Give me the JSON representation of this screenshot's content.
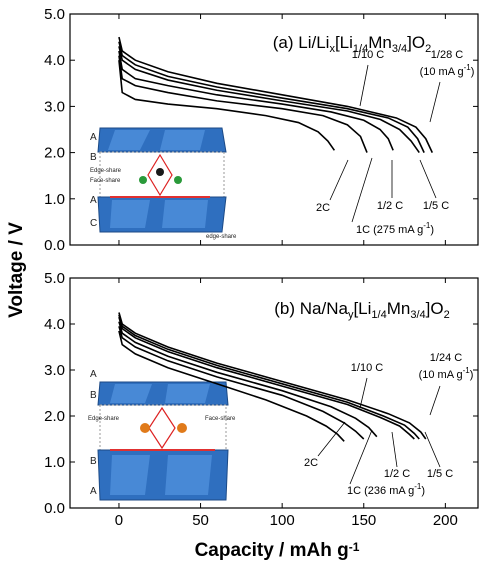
{
  "axis_labels": {
    "ylabel": "Voltage / V",
    "xlabel_parts": [
      {
        "text": "Capacity / mAh g"
      },
      {
        "text": "-1",
        "sup": true
      }
    ]
  },
  "chart_data": [
    {
      "type": "line",
      "title_parts": [
        {
          "text": "(a) Li/Li"
        },
        {
          "text": "x",
          "sub": true
        },
        {
          "text": "[Li"
        },
        {
          "text": "1/4",
          "sub": true
        },
        {
          "text": "Mn"
        },
        {
          "text": "3/4",
          "sub": true
        },
        {
          "text": "]O"
        },
        {
          "text": "2",
          "sub": true
        }
      ],
      "xlim": [
        -30,
        220
      ],
      "xticks": [
        0,
        50,
        100,
        150,
        200
      ],
      "xtick_labels": false,
      "ylim": [
        0,
        5
      ],
      "yticks": [
        {
          "value": 0,
          "label": "0.0"
        },
        {
          "value": 1,
          "label": "1.0"
        },
        {
          "value": 2,
          "label": "2.0"
        },
        {
          "value": 3,
          "label": "3.0"
        },
        {
          "value": 4,
          "label": "4.0"
        },
        {
          "value": 5,
          "label": "5.0"
        }
      ],
      "series": [
        {
          "color": "#000000",
          "x": [
            0,
            2,
            10,
            30,
            60,
            100,
            140,
            170,
            182,
            188,
            192
          ],
          "values": [
            4.5,
            4.2,
            4.0,
            3.75,
            3.5,
            3.25,
            3.0,
            2.75,
            2.55,
            2.3,
            2.0
          ]
        },
        {
          "color": "#000000",
          "x": [
            0,
            2,
            10,
            30,
            60,
            100,
            140,
            165,
            177,
            183,
            187
          ],
          "values": [
            4.4,
            4.1,
            3.9,
            3.65,
            3.42,
            3.18,
            2.95,
            2.75,
            2.55,
            2.3,
            2.0
          ]
        },
        {
          "color": "#000000",
          "x": [
            0,
            2,
            10,
            30,
            60,
            100,
            140,
            160,
            172,
            179,
            184
          ],
          "values": [
            4.3,
            4.0,
            3.8,
            3.57,
            3.35,
            3.12,
            2.9,
            2.72,
            2.5,
            2.25,
            2.0
          ]
        },
        {
          "color": "#000000",
          "x": [
            0,
            2,
            10,
            30,
            60,
            100,
            130,
            150,
            160,
            165,
            168
          ],
          "values": [
            4.2,
            3.8,
            3.6,
            3.45,
            3.25,
            3.05,
            2.88,
            2.7,
            2.5,
            2.3,
            2.05
          ]
        },
        {
          "color": "#000000",
          "x": [
            0,
            2,
            10,
            30,
            60,
            100,
            125,
            140,
            148,
            152
          ],
          "values": [
            4.1,
            3.6,
            3.45,
            3.3,
            3.12,
            2.95,
            2.8,
            2.6,
            2.35,
            2.0
          ]
        },
        {
          "color": "#000000",
          "x": [
            0,
            2,
            10,
            30,
            60,
            90,
            110,
            122,
            128,
            132
          ],
          "values": [
            4.0,
            3.3,
            3.15,
            3.05,
            2.95,
            2.8,
            2.65,
            2.45,
            2.25,
            2.05
          ]
        }
      ],
      "annotations": [
        {
          "parts": [
            {
              "text": "1/10 C"
            }
          ]
        },
        {
          "parts": [
            {
              "text": "1/28 C"
            }
          ]
        },
        {
          "parts": [
            {
              "text": "(10 mA g"
            },
            {
              "text": "-1",
              "sup": true
            },
            {
              "text": ")"
            }
          ]
        },
        {
          "parts": [
            {
              "text": "2C"
            }
          ]
        },
        {
          "parts": [
            {
              "text": "1C (275 mA g"
            },
            {
              "text": "-1",
              "sup": true
            },
            {
              "text": ")"
            }
          ]
        },
        {
          "parts": [
            {
              "text": "1/2 C"
            }
          ]
        },
        {
          "parts": [
            {
              "text": "1/5 C"
            }
          ]
        }
      ],
      "inset_labels": [
        "A",
        "B",
        "Edge-share",
        "Face-share",
        "A",
        "C",
        "edge-share"
      ]
    },
    {
      "type": "line",
      "title_parts": [
        {
          "text": "(b) Na/Na"
        },
        {
          "text": "y",
          "sub": true
        },
        {
          "text": "[Li"
        },
        {
          "text": "1/4",
          "sub": true
        },
        {
          "text": "Mn"
        },
        {
          "text": "3/4",
          "sub": true
        },
        {
          "text": "]O"
        },
        {
          "text": "2",
          "sub": true
        }
      ],
      "xlim": [
        -30,
        220
      ],
      "xticks": [
        0,
        50,
        100,
        150,
        200
      ],
      "xtick_labels": true,
      "ylim": [
        0,
        5
      ],
      "yticks": [
        {
          "value": 0,
          "label": "0.0"
        },
        {
          "value": 1,
          "label": "1.0"
        },
        {
          "value": 2,
          "label": "2.0"
        },
        {
          "value": 3,
          "label": "3.0"
        },
        {
          "value": 4,
          "label": "4.0"
        },
        {
          "value": 5,
          "label": "5.0"
        }
      ],
      "series": [
        {
          "color": "#000000",
          "x": [
            0,
            2,
            10,
            30,
            60,
            100,
            140,
            165,
            178,
            185,
            188
          ],
          "values": [
            4.25,
            4.0,
            3.8,
            3.5,
            3.15,
            2.75,
            2.35,
            2.05,
            1.85,
            1.65,
            1.5
          ]
        },
        {
          "color": "#000000",
          "x": [
            0,
            2,
            10,
            30,
            60,
            100,
            140,
            162,
            175,
            181,
            184
          ],
          "values": [
            4.2,
            3.95,
            3.75,
            3.45,
            3.1,
            2.7,
            2.3,
            2.0,
            1.8,
            1.62,
            1.5
          ]
        },
        {
          "color": "#000000",
          "x": [
            0,
            2,
            10,
            30,
            60,
            100,
            140,
            160,
            172,
            178,
            181
          ],
          "values": [
            4.15,
            3.9,
            3.7,
            3.4,
            3.05,
            2.65,
            2.25,
            1.97,
            1.78,
            1.6,
            1.5
          ]
        },
        {
          "color": "#000000",
          "x": [
            0,
            2,
            10,
            30,
            60,
            100,
            130,
            145,
            153,
            158
          ],
          "values": [
            4.05,
            3.8,
            3.6,
            3.3,
            2.95,
            2.55,
            2.2,
            1.95,
            1.75,
            1.55
          ]
        },
        {
          "color": "#000000",
          "x": [
            0,
            2,
            10,
            30,
            60,
            100,
            125,
            138,
            145,
            150
          ],
          "values": [
            3.95,
            3.7,
            3.5,
            3.2,
            2.85,
            2.45,
            2.1,
            1.85,
            1.67,
            1.5
          ]
        },
        {
          "color": "#000000",
          "x": [
            0,
            2,
            10,
            30,
            60,
            90,
            115,
            127,
            134,
            138
          ],
          "values": [
            3.85,
            3.55,
            3.35,
            3.05,
            2.7,
            2.35,
            2.0,
            1.78,
            1.6,
            1.45
          ]
        }
      ],
      "annotations": [
        {
          "parts": [
            {
              "text": "1/10 C"
            }
          ]
        },
        {
          "parts": [
            {
              "text": "1/24 C"
            }
          ]
        },
        {
          "parts": [
            {
              "text": "(10 mA g"
            },
            {
              "text": "-1",
              "sup": true
            },
            {
              "text": ")"
            }
          ]
        },
        {
          "parts": [
            {
              "text": "2C"
            }
          ]
        },
        {
          "parts": [
            {
              "text": "1C (236 mA g"
            },
            {
              "text": "-1",
              "sup": true
            },
            {
              "text": ")"
            }
          ]
        },
        {
          "parts": [
            {
              "text": "1/2 C"
            }
          ]
        },
        {
          "parts": [
            {
              "text": "1/5 C"
            }
          ]
        }
      ],
      "inset_labels": [
        "A",
        "B",
        "Edge-share",
        "Face-share",
        "B",
        "A"
      ]
    }
  ]
}
